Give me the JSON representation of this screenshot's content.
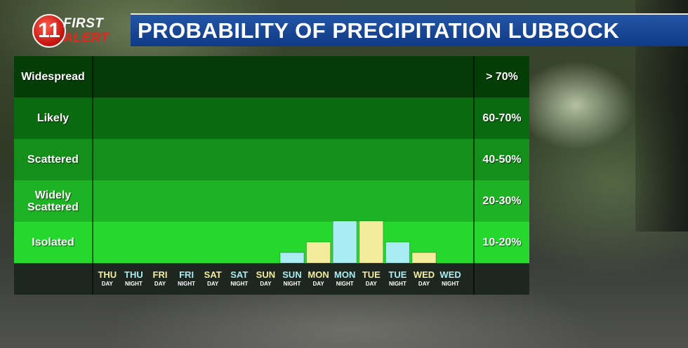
{
  "header": {
    "logo_digit": "11",
    "logo_word1": "FIRST",
    "logo_word2": "ALERT",
    "title": "PROBABILITY OF PRECIPITATION LUBBOCK"
  },
  "colors": {
    "day_bar": "#f3ec9d",
    "night_bar": "#a9ecf2",
    "title_bar": "#1a4a98",
    "band_widespread": "#043d06",
    "band_likely": "#0a6a10",
    "band_scattered": "#14901a",
    "band_widely_scattered": "#1eb324",
    "band_isolated": "#26d82d",
    "day_text": "#f3ec9d",
    "night_text": "#a9ecf2"
  },
  "chart_data": {
    "type": "bar",
    "title": "PROBABILITY OF PRECIPITATION LUBBOCK",
    "categories": [
      {
        "day": "THU",
        "period": "DAY"
      },
      {
        "day": "THU",
        "period": "NIGHT"
      },
      {
        "day": "FRI",
        "period": "DAY"
      },
      {
        "day": "FRI",
        "period": "NIGHT"
      },
      {
        "day": "SAT",
        "period": "DAY"
      },
      {
        "day": "SAT",
        "period": "NIGHT"
      },
      {
        "day": "SUN",
        "period": "DAY"
      },
      {
        "day": "SUN",
        "period": "NIGHT"
      },
      {
        "day": "MON",
        "period": "DAY"
      },
      {
        "day": "MON",
        "period": "NIGHT"
      },
      {
        "day": "TUE",
        "period": "DAY"
      },
      {
        "day": "TUE",
        "period": "NIGHT"
      },
      {
        "day": "WED",
        "period": "DAY"
      },
      {
        "day": "WED",
        "period": "NIGHT"
      }
    ],
    "values": [
      0,
      0,
      0,
      0,
      0,
      0,
      0,
      5,
      10,
      20,
      20,
      10,
      5,
      0
    ],
    "ylim": [
      0,
      100
    ],
    "bands": [
      {
        "label": "Widespread",
        "range": "> 70%"
      },
      {
        "label": "Likely",
        "range": "60-70%"
      },
      {
        "label": "Scattered",
        "range": "40-50%"
      },
      {
        "label": "Widely Scattered",
        "range": "20-30%"
      },
      {
        "label": "Isolated",
        "range": "10-20%"
      }
    ]
  }
}
